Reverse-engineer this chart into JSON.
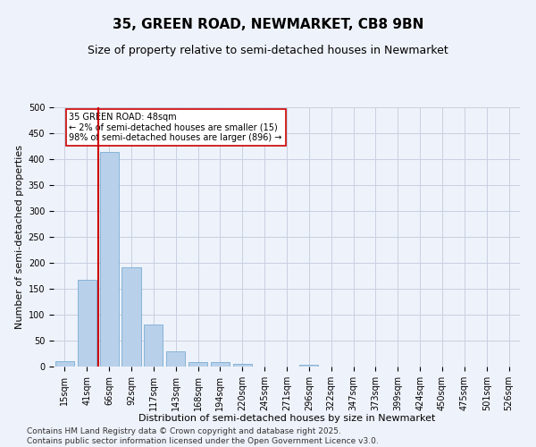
{
  "title": "35, GREEN ROAD, NEWMARKET, CB8 9BN",
  "subtitle": "Size of property relative to semi-detached houses in Newmarket",
  "xlabel": "Distribution of semi-detached houses by size in Newmarket",
  "ylabel": "Number of semi-detached properties",
  "categories": [
    "15sqm",
    "41sqm",
    "66sqm",
    "92sqm",
    "117sqm",
    "143sqm",
    "168sqm",
    "194sqm",
    "220sqm",
    "245sqm",
    "271sqm",
    "296sqm",
    "322sqm",
    "347sqm",
    "373sqm",
    "399sqm",
    "424sqm",
    "450sqm",
    "475sqm",
    "501sqm",
    "526sqm"
  ],
  "values": [
    10,
    168,
    413,
    192,
    81,
    29,
    9,
    8,
    5,
    0,
    0,
    4,
    0,
    0,
    0,
    0,
    0,
    0,
    0,
    0,
    0
  ],
  "bar_color": "#b8d0ea",
  "bar_edge_color": "#7aadd4",
  "vline_color": "#cc0000",
  "vline_x": 1.5,
  "annotation_text": "35 GREEN ROAD: 48sqm\n← 2% of semi-detached houses are smaller (15)\n98% of semi-detached houses are larger (896) →",
  "annotation_box_color": "#ffffff",
  "annotation_box_edge": "#cc0000",
  "ylim": [
    0,
    500
  ],
  "yticks": [
    0,
    50,
    100,
    150,
    200,
    250,
    300,
    350,
    400,
    450,
    500
  ],
  "footer": "Contains HM Land Registry data © Crown copyright and database right 2025.\nContains public sector information licensed under the Open Government Licence v3.0.",
  "bg_color": "#eef2fa",
  "grid_color": "#c8cfe0",
  "title_fontsize": 11,
  "subtitle_fontsize": 9,
  "axis_label_fontsize": 8,
  "tick_fontsize": 7,
  "footer_fontsize": 6.5,
  "annot_fontsize": 7
}
